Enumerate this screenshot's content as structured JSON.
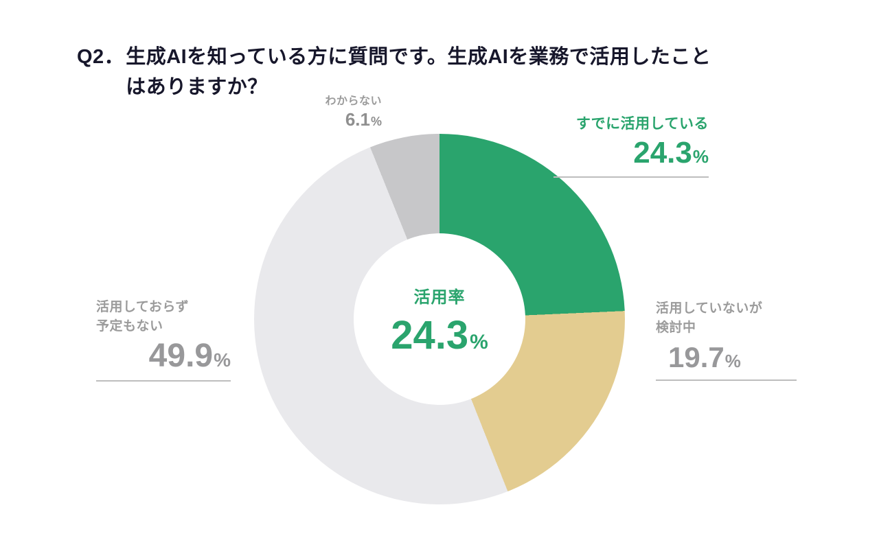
{
  "title": {
    "prefix": "Q2．",
    "line1": "生成AIを知っている方に質問です。生成AIを業務で活用したこと",
    "line2": "はありますか？"
  },
  "chart_data": {
    "type": "pie",
    "subtype": "donut",
    "title": "生成AIを業務で活用したことはありますか？",
    "start_angle_deg": 0,
    "direction": "clockwise",
    "unit": "%",
    "slices": [
      {
        "label": "すでに活用している",
        "value": 24.3,
        "color": "#2aa46d"
      },
      {
        "label": "活用していないが検討中",
        "value": 19.7,
        "color": "#e3cc90"
      },
      {
        "label": "活用しておらず予定もない",
        "value": 49.9,
        "color": "#e9e9ec"
      },
      {
        "label": "わからない",
        "value": 6.1,
        "color": "#c7c7c9"
      }
    ],
    "center": {
      "label": "活用率",
      "value": "24.3",
      "unit": "%"
    },
    "legend": "none",
    "accent_color": "#2aa46d",
    "muted_text_color": "#9b9b9b"
  },
  "callouts": {
    "already_using": {
      "label": "すでに活用している",
      "value": "24.3",
      "unit": "%"
    },
    "considering": {
      "label_line1": "活用していないが",
      "label_line2": "検討中",
      "value": "19.7",
      "unit": "%"
    },
    "no_plans": {
      "label_line1": "活用しておらず",
      "label_line2": "予定もない",
      "value": "49.9",
      "unit": "%"
    },
    "dont_know": {
      "label": "わからない",
      "value": "6.1",
      "unit": "%"
    }
  }
}
